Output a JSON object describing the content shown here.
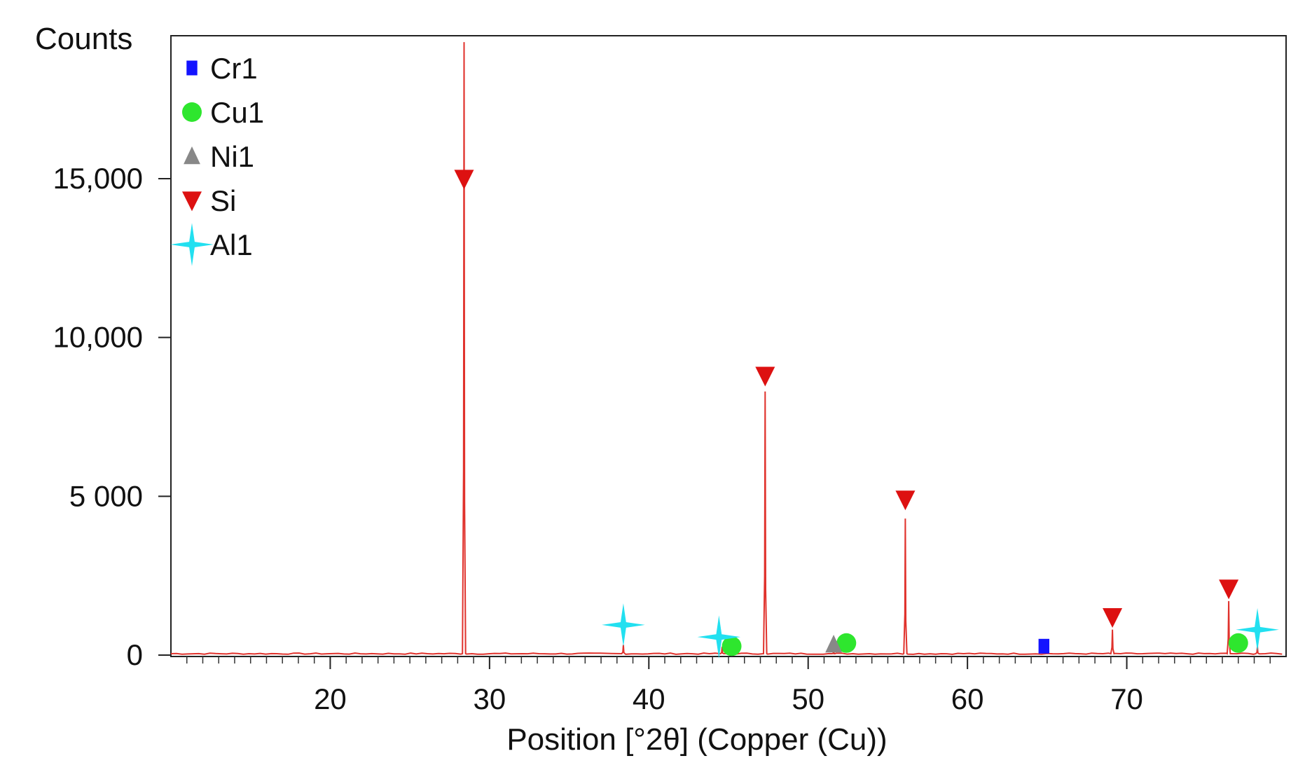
{
  "chart_data": {
    "type": "line",
    "ylabel": "Counts",
    "xlabel": "Position [°2θ] (Copper (Cu))",
    "xlim": [
      10,
      80
    ],
    "ylim": [
      0,
      19500
    ],
    "x_ticks": [
      20,
      30,
      40,
      50,
      60,
      70
    ],
    "x_tick_labels": [
      "20",
      "30",
      "40",
      "50",
      "60",
      "70"
    ],
    "y_ticks": [
      0,
      5000,
      10000,
      15000
    ],
    "y_tick_labels": [
      "0",
      "5 000",
      "10,000",
      "15,000"
    ],
    "grid": false,
    "legend_position": "top-left",
    "line_color": "#e0322c",
    "pattern_peaks": [
      {
        "x": 28.4,
        "y": 19300
      },
      {
        "x": 38.4,
        "y": 320
      },
      {
        "x": 44.6,
        "y": 260
      },
      {
        "x": 47.3,
        "y": 8300
      },
      {
        "x": 51.6,
        "y": 180
      },
      {
        "x": 56.1,
        "y": 4300
      },
      {
        "x": 69.1,
        "y": 800
      },
      {
        "x": 76.4,
        "y": 1700
      },
      {
        "x": 78.2,
        "y": 280
      }
    ],
    "series": [
      {
        "name": "Cr1",
        "marker": "square",
        "color": "#1414ff",
        "points": [
          {
            "x": 64.8,
            "y": 280
          }
        ]
      },
      {
        "name": "Cu1",
        "marker": "circle",
        "color": "#2ee62e",
        "points": [
          {
            "x": 45.2,
            "y": 280
          },
          {
            "x": 52.4,
            "y": 380
          },
          {
            "x": 77.0,
            "y": 380
          }
        ]
      },
      {
        "name": "Ni1",
        "marker": "triangle-up",
        "color": "#888888",
        "points": [
          {
            "x": 51.6,
            "y": 330
          }
        ]
      },
      {
        "name": "Si",
        "marker": "triangle-down",
        "color": "#dd1111",
        "points": [
          {
            "x": 28.4,
            "y": 15000
          },
          {
            "x": 47.3,
            "y": 8800
          },
          {
            "x": 56.1,
            "y": 4900
          },
          {
            "x": 69.1,
            "y": 1200
          },
          {
            "x": 76.4,
            "y": 2100
          }
        ]
      },
      {
        "name": "Al1",
        "marker": "star4",
        "color": "#22e0f0",
        "points": [
          {
            "x": 38.4,
            "y": 950
          },
          {
            "x": 44.4,
            "y": 570
          },
          {
            "x": 78.2,
            "y": 800
          }
        ]
      }
    ]
  }
}
